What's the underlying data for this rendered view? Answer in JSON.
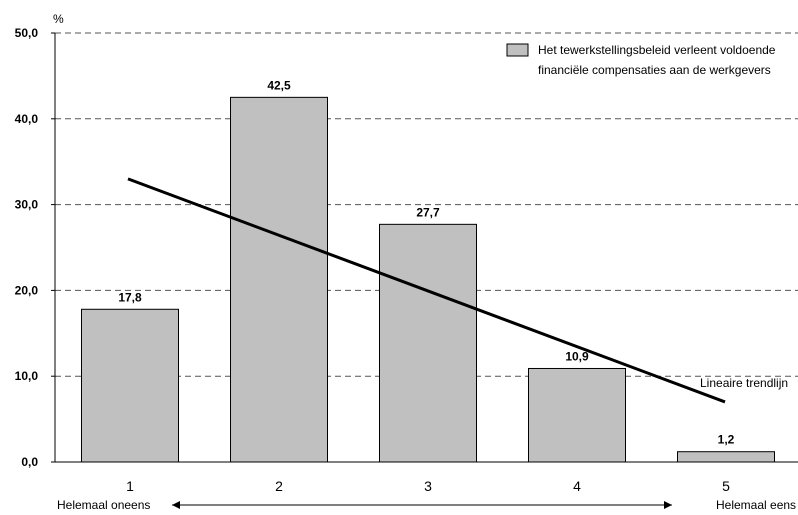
{
  "chart_data": {
    "type": "bar",
    "unit_label": "%",
    "categories": [
      "1",
      "2",
      "3",
      "4",
      "5"
    ],
    "values": [
      17.8,
      42.5,
      27.7,
      10.9,
      1.2
    ],
    "value_labels": [
      "17,8",
      "42,5",
      "27,7",
      "10,9",
      "1,2"
    ],
    "ylim": [
      0,
      50
    ],
    "yticks": [
      "0,0",
      "10,0",
      "20,0",
      "30,0",
      "40,0",
      "50,0"
    ],
    "grid": true,
    "bar_color": "#c0c0c0",
    "series": [
      {
        "name": "Het tewerkstellingsbeleid verleent voldoende financiële compensaties aan de werkgevers",
        "values": [
          17.8,
          42.5,
          27.7,
          10.9,
          1.2
        ]
      }
    ],
    "legend": {
      "placement": "top-right",
      "line1": "Het tewerkstellingsbeleid verleent voldoende",
      "line2": "financiële compensaties aan de werkgevers"
    },
    "trendline": {
      "label": "Lineaire trendlijn",
      "start": 33.0,
      "end": 7.0
    },
    "scale_labels": {
      "left": "Helemaal oneens",
      "right": "Helemaal eens"
    }
  }
}
